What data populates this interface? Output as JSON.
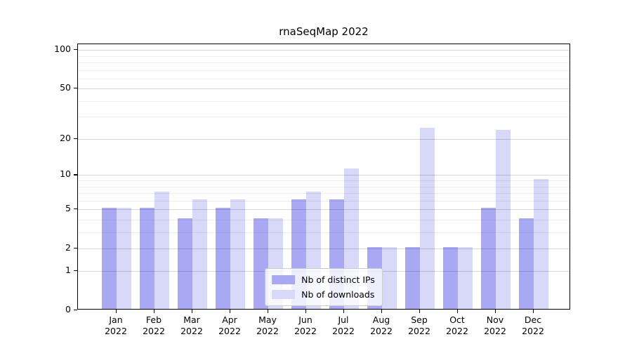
{
  "figure": {
    "title": "rnaSeqMap 2022"
  },
  "chart_data": {
    "type": "bar",
    "title": "rnaSeqMap 2022",
    "categories": [
      "Jan",
      "Feb",
      "Mar",
      "Apr",
      "May",
      "Jun",
      "Jul",
      "Aug",
      "Sep",
      "Oct",
      "Nov",
      "Dec"
    ],
    "category_year": "2022",
    "series": [
      {
        "name": "Nb of distinct IPs",
        "color": "#a8a8f3",
        "values": [
          5,
          5,
          4,
          5,
          4,
          6,
          6,
          2,
          2,
          2,
          5,
          4
        ]
      },
      {
        "name": "Nb of downloads",
        "color": "#d8d8f8",
        "values": [
          5,
          7,
          6,
          6,
          4,
          7,
          11,
          2,
          24,
          2,
          23,
          9
        ]
      }
    ],
    "xlabel": "",
    "ylabel": "",
    "yscale": "log1p",
    "ylim": [
      0,
      111
    ],
    "y_tick_labels": [
      100,
      50,
      20,
      10,
      5,
      2,
      1,
      0
    ],
    "y_major_gridlines": [
      1,
      2,
      5,
      10,
      20,
      50,
      100
    ],
    "y_minor_gridlines": [
      3,
      4,
      6,
      7,
      8,
      9,
      30,
      40,
      60,
      70,
      80,
      90
    ],
    "grid": true,
    "legend_position": "lower center"
  },
  "colors": {
    "background": "#ffffff",
    "spine": "#000000",
    "grid_major": "rgba(0,0,0,0.16)",
    "grid_minor": "rgba(0,0,0,0.06)",
    "bar_distinct_ips": "#a8a8f3",
    "bar_downloads": "#d8d8f8",
    "legend_border": "#cccccc"
  }
}
